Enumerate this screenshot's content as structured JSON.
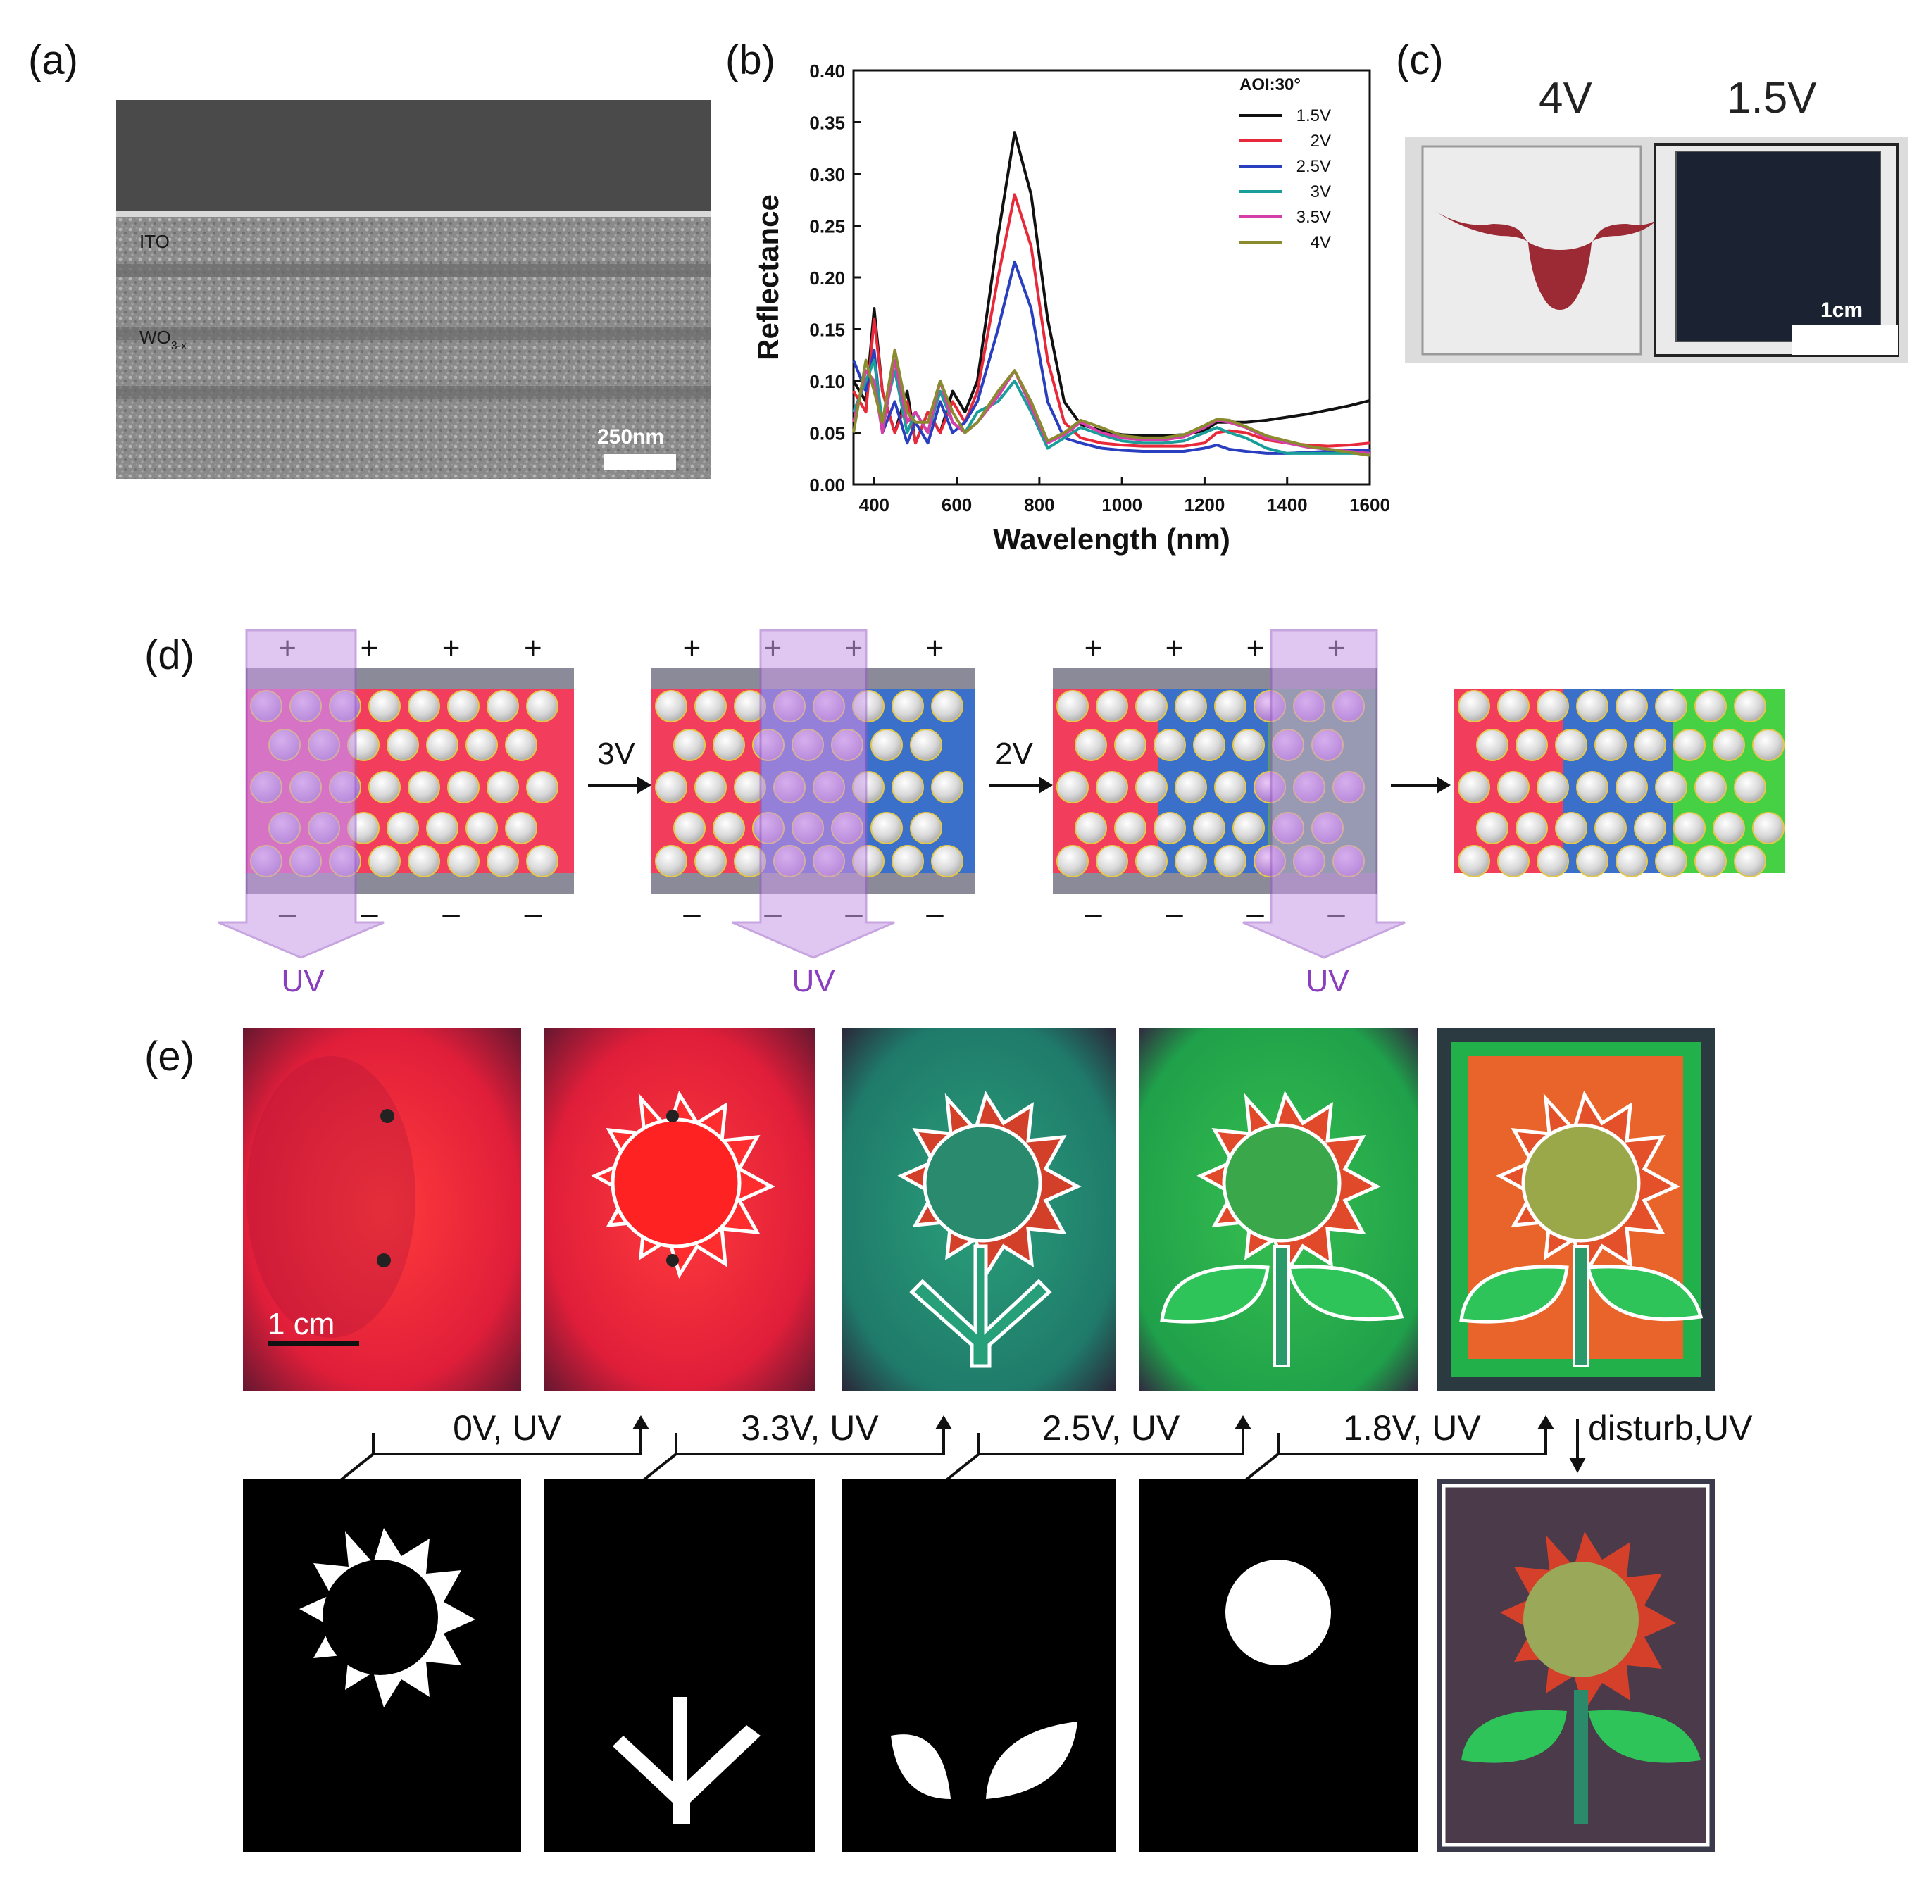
{
  "panel_labels": {
    "a": "(a)",
    "b": "(b)",
    "c": "(c)",
    "d": "(d)",
    "e": "(e)"
  },
  "panel_a": {
    "layer_top": "ITO",
    "layer_mid": "WO",
    "layer_mid_sub": "3-x",
    "scale_bar": "250nm"
  },
  "chart_data": {
    "type": "line",
    "title": "",
    "xlabel": "Wavelength (nm)",
    "ylabel": "Reflectance",
    "xlim": [
      350,
      1600
    ],
    "ylim": [
      0,
      0.4
    ],
    "xticks": [
      "400",
      "600",
      "800",
      "1000",
      "1200",
      "1400",
      "1600"
    ],
    "xtick_values": [
      400,
      600,
      800,
      1000,
      1200,
      1400,
      1600
    ],
    "yticks": [
      "0.00",
      "0.05",
      "0.10",
      "0.15",
      "0.20",
      "0.25",
      "0.30",
      "0.35",
      "0.40"
    ],
    "ytick_values": [
      0,
      0.05,
      0.1,
      0.15,
      0.2,
      0.25,
      0.3,
      0.35,
      0.4
    ],
    "legend_title": "AOI:30°",
    "legend_position": "top-right",
    "x": [
      350,
      380,
      400,
      420,
      450,
      480,
      500,
      530,
      560,
      590,
      620,
      650,
      700,
      740,
      780,
      820,
      860,
      900,
      950,
      1000,
      1050,
      1100,
      1150,
      1200,
      1230,
      1260,
      1300,
      1350,
      1400,
      1450,
      1500,
      1550,
      1600
    ],
    "series": [
      {
        "name": "1.5V",
        "color": "#111111",
        "values": [
          0.1,
          0.08,
          0.17,
          0.09,
          0.05,
          0.09,
          0.04,
          0.07,
          0.05,
          0.09,
          0.07,
          0.1,
          0.24,
          0.34,
          0.28,
          0.16,
          0.08,
          0.058,
          0.052,
          0.048,
          0.047,
          0.047,
          0.048,
          0.052,
          0.06,
          0.06,
          0.06,
          0.062,
          0.065,
          0.068,
          0.072,
          0.076,
          0.081
        ]
      },
      {
        "name": "2V",
        "color": "#e8293a",
        "values": [
          0.09,
          0.07,
          0.16,
          0.09,
          0.05,
          0.08,
          0.04,
          0.07,
          0.05,
          0.08,
          0.06,
          0.09,
          0.2,
          0.28,
          0.23,
          0.12,
          0.06,
          0.045,
          0.04,
          0.038,
          0.037,
          0.037,
          0.037,
          0.04,
          0.05,
          0.052,
          0.05,
          0.043,
          0.04,
          0.038,
          0.037,
          0.038,
          0.04
        ]
      },
      {
        "name": "2.5V",
        "color": "#2a3fbf",
        "values": [
          0.12,
          0.09,
          0.13,
          0.05,
          0.08,
          0.04,
          0.06,
          0.04,
          0.08,
          0.05,
          0.06,
          0.08,
          0.15,
          0.215,
          0.17,
          0.08,
          0.045,
          0.04,
          0.035,
          0.033,
          0.032,
          0.032,
          0.032,
          0.035,
          0.038,
          0.034,
          0.032,
          0.03,
          0.03,
          0.031,
          0.032,
          0.033,
          0.033
        ]
      },
      {
        "name": "3V",
        "color": "#1a9e9a",
        "values": [
          0.07,
          0.1,
          0.12,
          0.06,
          0.11,
          0.05,
          0.07,
          0.05,
          0.09,
          0.06,
          0.05,
          0.07,
          0.08,
          0.1,
          0.07,
          0.035,
          0.045,
          0.055,
          0.048,
          0.042,
          0.04,
          0.04,
          0.042,
          0.05,
          0.055,
          0.05,
          0.045,
          0.035,
          0.03,
          0.03,
          0.03,
          0.03,
          0.03
        ]
      },
      {
        "name": "3.5V",
        "color": "#d43fa8",
        "values": [
          0.06,
          0.11,
          0.1,
          0.05,
          0.12,
          0.06,
          0.07,
          0.05,
          0.1,
          0.06,
          0.05,
          0.06,
          0.085,
          0.11,
          0.075,
          0.04,
          0.048,
          0.06,
          0.05,
          0.045,
          0.043,
          0.043,
          0.046,
          0.055,
          0.062,
          0.06,
          0.055,
          0.045,
          0.04,
          0.036,
          0.034,
          0.032,
          0.03
        ]
      },
      {
        "name": "4V",
        "color": "#8a8a2e",
        "values": [
          0.05,
          0.12,
          0.09,
          0.06,
          0.13,
          0.07,
          0.06,
          0.06,
          0.1,
          0.07,
          0.05,
          0.06,
          0.09,
          0.11,
          0.08,
          0.042,
          0.05,
          0.062,
          0.055,
          0.047,
          0.045,
          0.045,
          0.048,
          0.057,
          0.063,
          0.062,
          0.056,
          0.047,
          0.042,
          0.037,
          0.034,
          0.031,
          0.028
        ]
      }
    ]
  },
  "panel_c": {
    "label_left": "4V",
    "label_right": "1.5V",
    "scale_bar": "1cm"
  },
  "panel_d": {
    "plus": "+",
    "minus": "–",
    "uv": "UV",
    "arrow1": "3V",
    "arrow2": "2V",
    "colors": {
      "red": "#f23d5d",
      "pink": "#e9429a",
      "blue": "#3a70c9",
      "purple_blue": "#5560c8",
      "green": "#46d145",
      "green_dark": "#5c9a70",
      "uv": "#c89be8",
      "electrode": "#8a8a99"
    }
  },
  "panel_e": {
    "scale_bar": "1 cm",
    "steps": [
      "0V, UV",
      "3.3V, UV",
      "2.5V, UV",
      "1.8V, UV"
    ],
    "last_step": "disturb,UV"
  }
}
